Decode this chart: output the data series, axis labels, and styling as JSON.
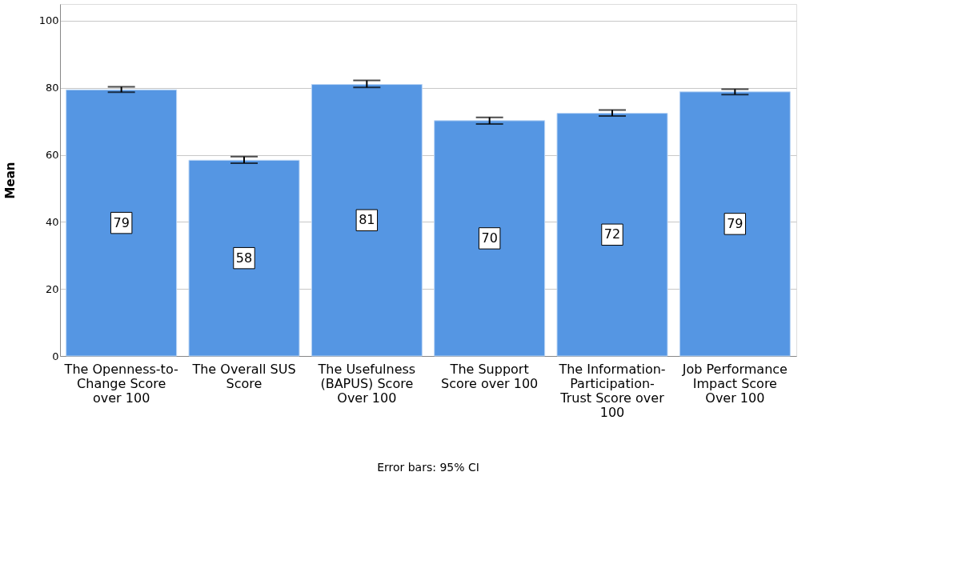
{
  "chart_data": {
    "type": "bar",
    "ylabel": "Mean",
    "categories": [
      "The Openness-to-Change Score over 100",
      "The Overall SUS Score",
      "The Usefulness (BAPUS) Score Over 100",
      "The Support Score over 100",
      "The Information-Participation-Trust Score over 100",
      "Job Performance Impact Score Over 100"
    ],
    "values": [
      79.4,
      58.4,
      81.0,
      70.2,
      72.4,
      78.8
    ],
    "value_labels": [
      "79",
      "58",
      "81",
      "70",
      "72",
      "79"
    ],
    "errors": [
      [
        78.7,
        80.3
      ],
      [
        57.5,
        59.5
      ],
      [
        80.1,
        82.2
      ],
      [
        69.2,
        71.2
      ],
      [
        71.6,
        73.4
      ],
      [
        78.0,
        79.6
      ]
    ],
    "color": "#5596e3",
    "ylim": [
      0,
      105
    ],
    "yticks": [
      0,
      20,
      40,
      60,
      80,
      100
    ],
    "grid": "y",
    "annotations": [
      "Error bars: 95% CI"
    ]
  }
}
